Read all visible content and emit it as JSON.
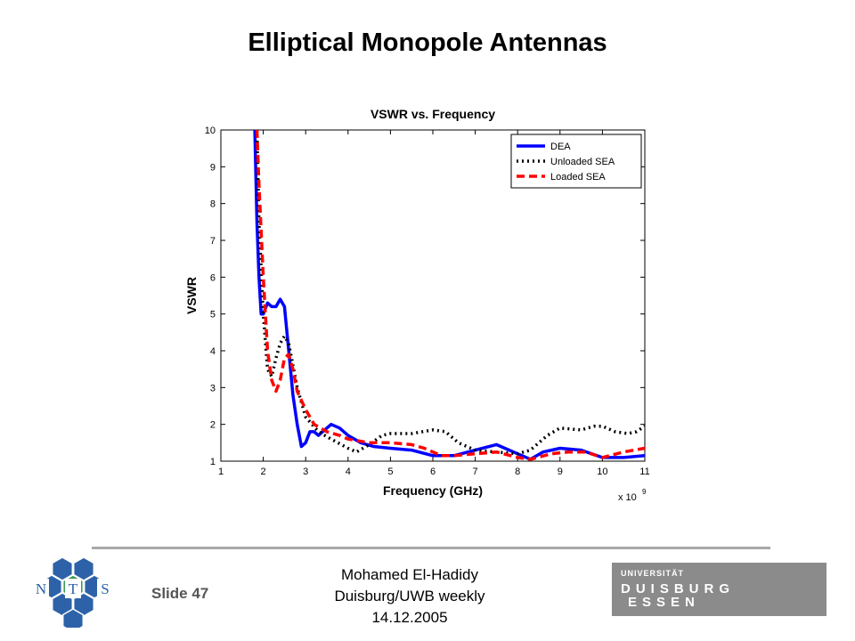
{
  "slide": {
    "title": "Elliptical Monopole Antennas",
    "slide_label": "Slide 47",
    "footer_lines": [
      "Mohamed El-Hadidy",
      "Duisburg/UWB weekly",
      "14.12.2005"
    ]
  },
  "logos": {
    "nts": {
      "letters": [
        "N",
        "T",
        "S"
      ],
      "colors": {
        "hex": "#2d62a8",
        "green": "#3a9a55",
        "white": "#ffffff"
      }
    },
    "university": {
      "line1": "UNIVERSITÄT",
      "line2": "DUISBURG",
      "line3": "ESSEN",
      "bg": "#8b8b8b"
    }
  },
  "chart_data": {
    "type": "line",
    "title": "VSWR vs. Frequency",
    "xlabel": "Frequency (GHz)",
    "ylabel": "VSWR",
    "x_multiplier": "x 10",
    "x_multiplier_exp": "9",
    "xlim": [
      1,
      11
    ],
    "ylim": [
      1,
      10
    ],
    "xticks": [
      1,
      2,
      3,
      4,
      5,
      6,
      7,
      8,
      9,
      10,
      11
    ],
    "yticks": [
      1,
      2,
      3,
      4,
      5,
      6,
      7,
      8,
      9,
      10
    ],
    "grid": false,
    "legend_position": "top-right",
    "series": [
      {
        "name": "DEA",
        "color": "#0000ff",
        "dash": "solid",
        "points": [
          [
            1.8,
            10
          ],
          [
            1.85,
            7.5
          ],
          [
            1.9,
            6.0
          ],
          [
            1.95,
            5.0
          ],
          [
            2.0,
            5.0
          ],
          [
            2.1,
            5.3
          ],
          [
            2.2,
            5.2
          ],
          [
            2.3,
            5.2
          ],
          [
            2.4,
            5.4
          ],
          [
            2.5,
            5.2
          ],
          [
            2.6,
            4.0
          ],
          [
            2.7,
            2.8
          ],
          [
            2.8,
            2.0
          ],
          [
            2.9,
            1.4
          ],
          [
            3.0,
            1.5
          ],
          [
            3.1,
            1.8
          ],
          [
            3.2,
            1.8
          ],
          [
            3.3,
            1.7
          ],
          [
            3.4,
            1.8
          ],
          [
            3.5,
            1.9
          ],
          [
            3.6,
            2.0
          ],
          [
            3.8,
            1.9
          ],
          [
            4.0,
            1.7
          ],
          [
            4.3,
            1.5
          ],
          [
            4.6,
            1.4
          ],
          [
            5.0,
            1.35
          ],
          [
            5.5,
            1.3
          ],
          [
            6.0,
            1.15
          ],
          [
            6.5,
            1.15
          ],
          [
            7.0,
            1.3
          ],
          [
            7.5,
            1.45
          ],
          [
            8.0,
            1.2
          ],
          [
            8.3,
            1.05
          ],
          [
            8.6,
            1.25
          ],
          [
            9.0,
            1.35
          ],
          [
            9.5,
            1.3
          ],
          [
            10.0,
            1.1
          ],
          [
            10.5,
            1.1
          ],
          [
            11.0,
            1.15
          ]
        ]
      },
      {
        "name": "Unloaded SEA",
        "color": "#000000",
        "dash": "dotted",
        "points": [
          [
            1.85,
            10
          ],
          [
            1.9,
            7.5
          ],
          [
            2.0,
            5.0
          ],
          [
            2.1,
            3.5
          ],
          [
            2.2,
            3.3
          ],
          [
            2.3,
            3.8
          ],
          [
            2.4,
            4.2
          ],
          [
            2.5,
            4.4
          ],
          [
            2.6,
            4.2
          ],
          [
            2.7,
            3.6
          ],
          [
            2.8,
            3.0
          ],
          [
            2.9,
            2.6
          ],
          [
            3.0,
            2.2
          ],
          [
            3.3,
            1.8
          ],
          [
            3.6,
            1.6
          ],
          [
            4.0,
            1.35
          ],
          [
            4.2,
            1.25
          ],
          [
            4.5,
            1.45
          ],
          [
            4.8,
            1.7
          ],
          [
            5.0,
            1.75
          ],
          [
            5.5,
            1.75
          ],
          [
            6.0,
            1.85
          ],
          [
            6.3,
            1.8
          ],
          [
            6.6,
            1.5
          ],
          [
            7.0,
            1.3
          ],
          [
            7.5,
            1.25
          ],
          [
            8.0,
            1.2
          ],
          [
            8.3,
            1.3
          ],
          [
            8.7,
            1.7
          ],
          [
            9.0,
            1.9
          ],
          [
            9.5,
            1.85
          ],
          [
            9.8,
            1.95
          ],
          [
            10.0,
            1.95
          ],
          [
            10.3,
            1.8
          ],
          [
            10.6,
            1.75
          ],
          [
            10.8,
            1.8
          ],
          [
            11.0,
            1.95
          ]
        ]
      },
      {
        "name": "Loaded SEA",
        "color": "#ff0000",
        "dash": "dashed",
        "points": [
          [
            1.85,
            10
          ],
          [
            1.9,
            8.5
          ],
          [
            2.0,
            6.0
          ],
          [
            2.1,
            4.0
          ],
          [
            2.2,
            3.2
          ],
          [
            2.3,
            2.9
          ],
          [
            2.4,
            3.2
          ],
          [
            2.5,
            3.8
          ],
          [
            2.6,
            3.9
          ],
          [
            2.7,
            3.5
          ],
          [
            2.8,
            2.9
          ],
          [
            3.0,
            2.4
          ],
          [
            3.2,
            2.0
          ],
          [
            3.5,
            1.8
          ],
          [
            3.8,
            1.7
          ],
          [
            4.0,
            1.6
          ],
          [
            4.5,
            1.5
          ],
          [
            5.0,
            1.5
          ],
          [
            5.5,
            1.45
          ],
          [
            5.8,
            1.35
          ],
          [
            6.2,
            1.15
          ],
          [
            6.5,
            1.15
          ],
          [
            7.0,
            1.2
          ],
          [
            7.5,
            1.25
          ],
          [
            8.0,
            1.1
          ],
          [
            8.3,
            1.05
          ],
          [
            8.8,
            1.2
          ],
          [
            9.2,
            1.25
          ],
          [
            9.6,
            1.25
          ],
          [
            10.0,
            1.1
          ],
          [
            10.5,
            1.25
          ],
          [
            11.0,
            1.35
          ]
        ]
      }
    ]
  }
}
